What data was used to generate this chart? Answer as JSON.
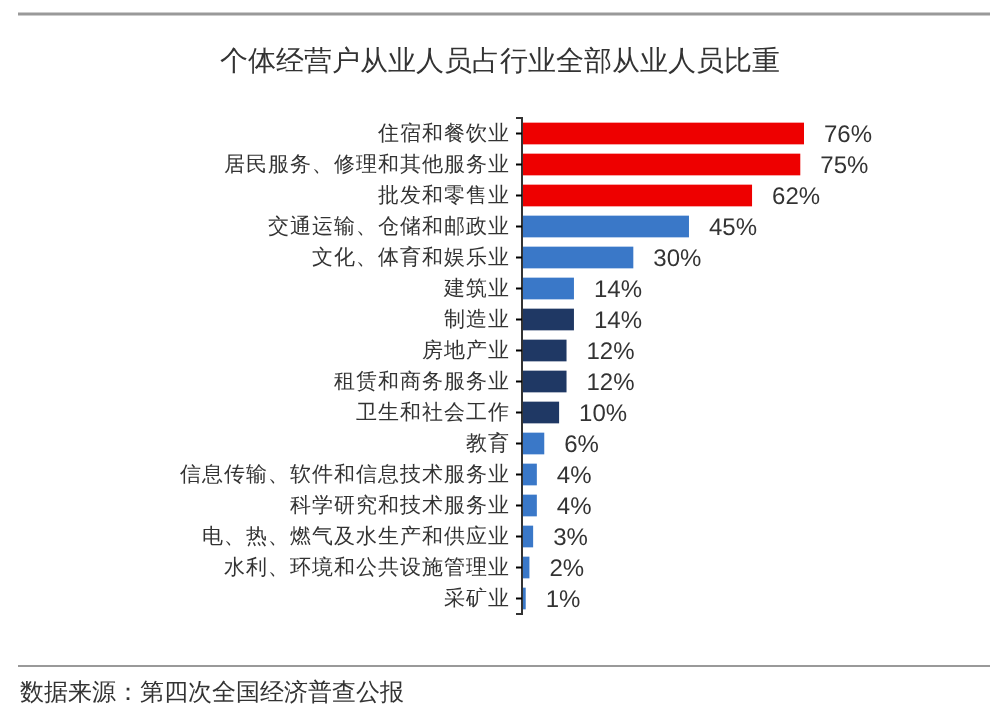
{
  "chart_data": {
    "type": "bar",
    "orientation": "horizontal",
    "title": "个体经营户从业人员占行业全部从业人员比重",
    "categories": [
      "住宿和餐饮业",
      "居民服务、修理和其他服务业",
      "批发和零售业",
      "交通运输、仓储和邮政业",
      "文化、体育和娱乐业",
      "建筑业",
      "制造业",
      "房地产业",
      "租赁和商务服务业",
      "卫生和社会工作",
      "教育",
      "信息传输、软件和信息技术服务业",
      "科学研究和技术服务业",
      "电、热、燃气及水生产和供应业",
      "水利、环境和公共设施管理业",
      "采矿业"
    ],
    "values": [
      76,
      75,
      62,
      45,
      30,
      14,
      14,
      12,
      12,
      10,
      6,
      4,
      4,
      3,
      2,
      1
    ],
    "value_labels": [
      "76%",
      "75%",
      "62%",
      "45%",
      "30%",
      "14%",
      "14%",
      "12%",
      "12%",
      "10%",
      "6%",
      "4%",
      "4%",
      "3%",
      "2%",
      "1%"
    ],
    "colors": [
      "#ee0000",
      "#ee0000",
      "#ee0000",
      "#3a78c8",
      "#3a78c8",
      "#3a78c8",
      "#1f3864",
      "#1f3864",
      "#1f3864",
      "#1f3864",
      "#3a78c8",
      "#3a78c8",
      "#3a78c8",
      "#3a78c8",
      "#3a78c8",
      "#3a78c8"
    ],
    "annotations": [
      "数据来源：第四次全国经济普查公报"
    ]
  }
}
